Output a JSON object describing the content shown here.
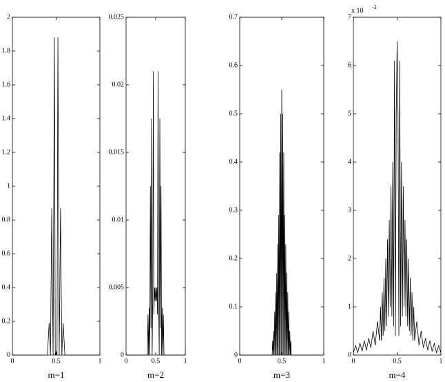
{
  "chart_data": [
    {
      "type": "line",
      "color": "#000000",
      "xlabel": "m=1",
      "xlim": [
        0,
        1
      ],
      "xticks": [
        0,
        0.5,
        1
      ],
      "ylim": [
        0,
        2
      ],
      "yticks": [
        0,
        0.2,
        0.4,
        0.6,
        0.8,
        1,
        1.2,
        1.4,
        1.6,
        1.8,
        2
      ],
      "x": [
        0,
        0.4,
        0.42,
        0.435,
        0.45,
        0.465,
        0.48,
        0.49,
        0.5,
        0.51,
        0.52,
        0.535,
        0.55,
        0.565,
        0.58,
        0.6,
        1
      ],
      "values": [
        0,
        0,
        0.19,
        0,
        0.87,
        0,
        1.88,
        0,
        0.02,
        0,
        1.88,
        0,
        0.87,
        0,
        0.19,
        0,
        0
      ]
    },
    {
      "type": "line",
      "color": "#000000",
      "xlabel": "m=2",
      "xlim": [
        0,
        1
      ],
      "xticks": [
        0,
        0.5,
        1
      ],
      "ylim": [
        0,
        0.025
      ],
      "yticks": [
        0,
        0.005,
        0.01,
        0.015,
        0.02,
        0.025
      ],
      "x": [
        0,
        0.36,
        0.37,
        0.38,
        0.39,
        0.4,
        0.41,
        0.42,
        0.43,
        0.44,
        0.45,
        0.46,
        0.47,
        0.48,
        0.49,
        0.5,
        0.51,
        0.52,
        0.53,
        0.54,
        0.55,
        0.56,
        0.57,
        0.58,
        0.59,
        0.6,
        0.61,
        0.62,
        0.63,
        0.64,
        1
      ],
      "values": [
        0,
        0,
        0.003,
        0,
        0.0035,
        0,
        0.0125,
        0.002,
        0.0175,
        0,
        0.004,
        0.021,
        0.003,
        0.005,
        0.004,
        0.005,
        0.004,
        0.005,
        0.003,
        0.021,
        0.004,
        0,
        0.0175,
        0.002,
        0.0125,
        0,
        0.0035,
        0,
        0.003,
        0,
        0
      ]
    },
    {
      "type": "line",
      "color": "#000000",
      "xlabel": "m=3",
      "xlim": [
        0,
        1
      ],
      "xticks": [
        0,
        0.5,
        1
      ],
      "ylim": [
        0,
        0.7
      ],
      "yticks": [
        0,
        0.1,
        0.2,
        0.3,
        0.4,
        0.5,
        0.6,
        0.7
      ],
      "x": [
        0,
        0.386,
        0.392,
        0.398,
        0.404,
        0.41,
        0.416,
        0.422,
        0.428,
        0.434,
        0.44,
        0.446,
        0.452,
        0.458,
        0.464,
        0.47,
        0.476,
        0.482,
        0.488,
        0.494,
        0.5,
        0.506,
        0.512,
        0.518,
        0.524,
        0.53,
        0.536,
        0.542,
        0.548,
        0.554,
        0.56,
        0.566,
        0.572,
        0.578,
        0.584,
        0.59,
        0.596,
        0.602,
        0.608,
        0.614,
        1
      ],
      "values": [
        0,
        0,
        0.03,
        0,
        0.05,
        0,
        0.09,
        0,
        0.13,
        0,
        0.17,
        0,
        0.23,
        0,
        0.29,
        0,
        0.42,
        0,
        0.5,
        0,
        0.55,
        0,
        0.5,
        0,
        0.42,
        0,
        0.29,
        0,
        0.23,
        0,
        0.17,
        0,
        0.13,
        0,
        0.09,
        0,
        0.05,
        0,
        0.03,
        0,
        0
      ]
    },
    {
      "type": "line",
      "color": "#000000",
      "xlabel": "m=4",
      "y_multiplier": "x 10",
      "y_multiplier_exponent": "-3",
      "xlim": [
        0,
        1
      ],
      "xticks": [
        0,
        0.5,
        1
      ],
      "ylim": [
        0,
        7
      ],
      "yticks": [
        0,
        1,
        2,
        3,
        4,
        5,
        6,
        7
      ],
      "x": [
        0,
        0.025,
        0.05,
        0.075,
        0.1,
        0.125,
        0.15,
        0.175,
        0.2,
        0.225,
        0.25,
        0.275,
        0.3,
        0.31,
        0.32,
        0.33,
        0.34,
        0.35,
        0.36,
        0.37,
        0.38,
        0.39,
        0.4,
        0.41,
        0.42,
        0.43,
        0.44,
        0.45,
        0.46,
        0.47,
        0.48,
        0.49,
        0.5,
        0.51,
        0.52,
        0.53,
        0.54,
        0.55,
        0.56,
        0.57,
        0.58,
        0.59,
        0.6,
        0.61,
        0.62,
        0.63,
        0.64,
        0.65,
        0.66,
        0.67,
        0.68,
        0.69,
        0.7,
        0.725,
        0.75,
        0.775,
        0.8,
        0.825,
        0.85,
        0.875,
        0.9,
        0.925,
        0.95,
        0.975,
        1
      ],
      "values": [
        0.05,
        0.2,
        0.05,
        0.25,
        0.08,
        0.3,
        0.1,
        0.35,
        0.15,
        0.5,
        0.2,
        0.7,
        0.3,
        1.0,
        0.3,
        1.3,
        0.4,
        1.6,
        0.5,
        2.0,
        0.6,
        2.4,
        0.8,
        2.8,
        1.0,
        3.5,
        0.8,
        4.0,
        0.6,
        6.1,
        0.4,
        5.0,
        6.5,
        5.0,
        0.4,
        6.1,
        0.6,
        4.0,
        0.8,
        3.5,
        1.0,
        2.8,
        0.8,
        2.4,
        0.6,
        2.0,
        0.5,
        1.6,
        0.4,
        1.3,
        0.3,
        1.0,
        0.3,
        0.7,
        0.2,
        0.5,
        0.15,
        0.35,
        0.1,
        0.3,
        0.08,
        0.25,
        0.05,
        0.2,
        0.05
      ]
    }
  ]
}
